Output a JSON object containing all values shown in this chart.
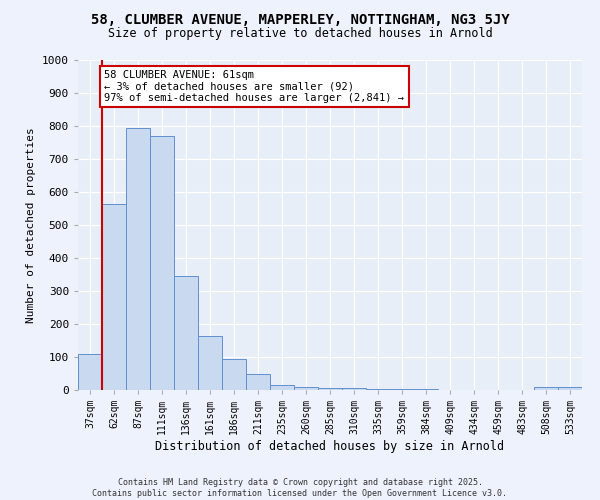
{
  "title_line1": "58, CLUMBER AVENUE, MAPPERLEY, NOTTINGHAM, NG3 5JY",
  "title_line2": "Size of property relative to detached houses in Arnold",
  "xlabel": "Distribution of detached houses by size in Arnold",
  "ylabel": "Number of detached properties",
  "bar_color": "#c8d9f0",
  "bar_edge_color": "#6090d0",
  "background_color": "#e8eef8",
  "grid_color": "#ffffff",
  "categories": [
    "37sqm",
    "62sqm",
    "87sqm",
    "111sqm",
    "136sqm",
    "161sqm",
    "186sqm",
    "211sqm",
    "235sqm",
    "260sqm",
    "285sqm",
    "310sqm",
    "335sqm",
    "359sqm",
    "384sqm",
    "409sqm",
    "434sqm",
    "459sqm",
    "483sqm",
    "508sqm",
    "533sqm"
  ],
  "values": [
    110,
    565,
    793,
    770,
    345,
    165,
    95,
    50,
    15,
    10,
    5,
    5,
    3,
    2,
    2,
    1,
    1,
    1,
    0,
    8,
    8
  ],
  "ylim": [
    0,
    1000
  ],
  "yticks": [
    0,
    100,
    200,
    300,
    400,
    500,
    600,
    700,
    800,
    900,
    1000
  ],
  "vline_color": "#cc0000",
  "vline_x": 1.0,
  "annotation_text": "58 CLUMBER AVENUE: 61sqm\n← 3% of detached houses are smaller (92)\n97% of semi-detached houses are larger (2,841) →",
  "annotation_box_color": "#ffffff",
  "annotation_box_edge_color": "#cc0000",
  "footer_line1": "Contains HM Land Registry data © Crown copyright and database right 2025.",
  "footer_line2": "Contains public sector information licensed under the Open Government Licence v3.0."
}
